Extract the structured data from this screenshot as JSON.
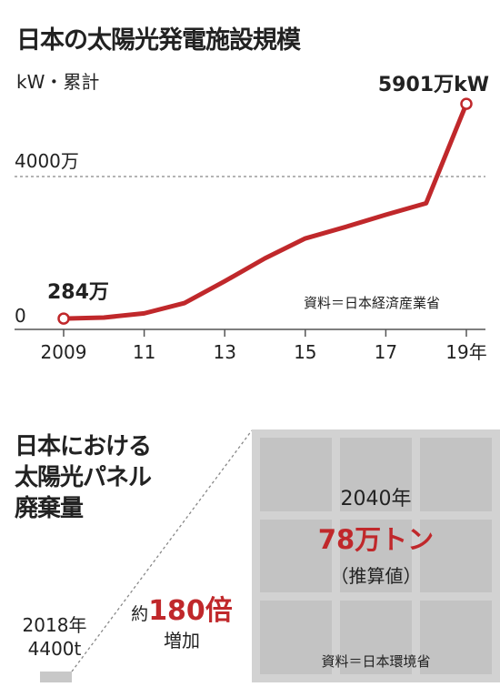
{
  "chart_data": [
    {
      "type": "line",
      "title": "日本の太陽光発電施設規模",
      "ylabel": "kW・累計",
      "x": [
        2009,
        2010,
        2011,
        2012,
        2013,
        2014,
        2015,
        2016,
        2017,
        2018,
        2019
      ],
      "values": [
        284,
        310,
        420,
        690,
        1260,
        1860,
        2380,
        2680,
        3000,
        3300,
        5901
      ],
      "xticks": [
        2009,
        2011,
        2013,
        2015,
        2017,
        2019
      ],
      "xtick_labels": [
        "2009",
        "11",
        "13",
        "15",
        "17",
        "19年"
      ],
      "yticks": [
        0,
        4000
      ],
      "ytick_labels": [
        "0",
        "4000万"
      ],
      "ylim": [
        0,
        6500
      ],
      "reference_line": 4000,
      "start_label": "284万",
      "end_label": "5901万kW",
      "source": "資料＝日本経済産業省",
      "color": "#c0282b",
      "grid": false
    },
    {
      "type": "bar",
      "title_lines": [
        "日本における",
        "太陽光パネル",
        "廃棄量"
      ],
      "categories": [
        "2018年",
        "2040年"
      ],
      "values": [
        0.44,
        78
      ],
      "value_labels": [
        "4400t",
        "78万トン"
      ],
      "note": "（推算値）",
      "multiplier_prefix": "約",
      "multiplier_value": "180倍",
      "multiplier_suffix": "増加",
      "source": "資料＝日本環境省",
      "colors": {
        "small_bar": "#c8c8c8",
        "panel": "#d2d2d2",
        "panel_cell": "#c3c3c3",
        "accent": "#c0282b"
      }
    }
  ]
}
